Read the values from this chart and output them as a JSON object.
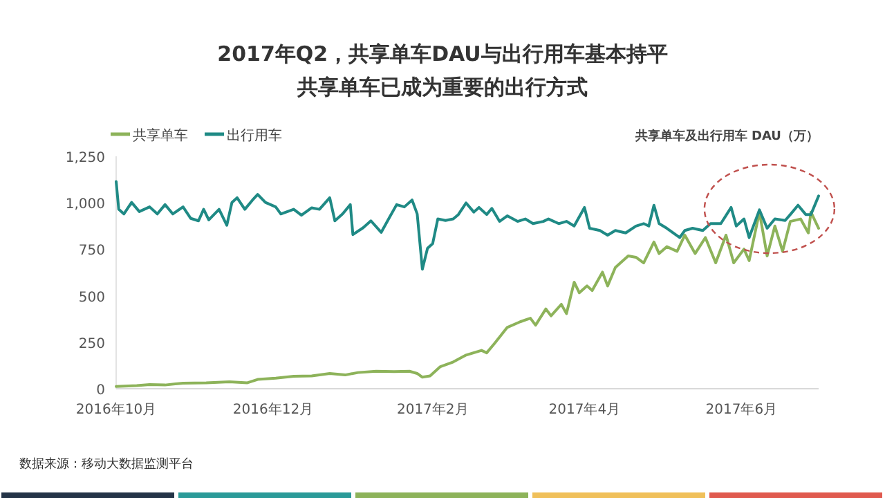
{
  "chart_data": {
    "type": "line",
    "title": "2017年Q2，共享单车DAU与出行用车基本持平",
    "subtitle": "共享单车已成为重要的出行方式",
    "ylabel": "共享单车及出行用车 DAU（万）",
    "annotations": [
      "数据来源：移动大数据监测平台"
    ],
    "legend": "top left",
    "xlim": [
      "2016-10-01",
      "2017-07-01"
    ],
    "xticks": [
      {
        "value": "2016-10",
        "label": "2016年10月"
      },
      {
        "value": "2016-12",
        "label": "2016年12月"
      },
      {
        "value": "2017-02",
        "label": "2017年2月"
      },
      {
        "value": "2017-04",
        "label": "2017年4月"
      },
      {
        "value": "2017-06",
        "label": "2017年6月"
      }
    ],
    "ylim": [
      0,
      1250
    ],
    "yticks": [
      0,
      250,
      500,
      750,
      {
        "value": 1000,
        "label": "1,000"
      },
      {
        "value": 1250,
        "label": "1,250"
      }
    ],
    "series": [
      {
        "name": "共享单车",
        "color": "#8db35a",
        "x": [
          "2016-10-01",
          "2016-10-09",
          "2016-10-14",
          "2016-10-20",
          "2016-10-27",
          "2016-11-05",
          "2016-11-14",
          "2016-11-21",
          "2016-11-25",
          "2016-12-02",
          "2016-12-09",
          "2016-12-16",
          "2016-12-23",
          "2016-12-29",
          "2017-01-03",
          "2017-01-10",
          "2017-01-17",
          "2017-01-23",
          "2017-01-26",
          "2017-01-28",
          "2017-01-31",
          "2017-02-04",
          "2017-02-09",
          "2017-02-14",
          "2017-02-20",
          "2017-02-22",
          "2017-02-25",
          "2017-03-02",
          "2017-03-07",
          "2017-03-11",
          "2017-03-13",
          "2017-03-17",
          "2017-03-19",
          "2017-03-23",
          "2017-03-25",
          "2017-03-28",
          "2017-03-30",
          "2017-04-02",
          "2017-04-04",
          "2017-04-08",
          "2017-04-10",
          "2017-04-13",
          "2017-04-15",
          "2017-04-18",
          "2017-04-21",
          "2017-04-24",
          "2017-04-28",
          "2017-04-30",
          "2017-05-03",
          "2017-05-07",
          "2017-05-10",
          "2017-05-14",
          "2017-05-18",
          "2017-05-22",
          "2017-05-26",
          "2017-05-29",
          "2017-06-02",
          "2017-06-04",
          "2017-06-08",
          "2017-06-11",
          "2017-06-14",
          "2017-06-17",
          "2017-06-20",
          "2017-06-24",
          "2017-06-27",
          "2017-06-28",
          "2017-07-01"
        ],
        "values": [
          12,
          17,
          22,
          20,
          30,
          32,
          37,
          32,
          50,
          57,
          67,
          69,
          82,
          74,
          87,
          94,
          92,
          94,
          82,
          62,
          69,
          119,
          144,
          181,
          206,
          193,
          243,
          330,
          360,
          379,
          342,
          429,
          392,
          454,
          404,
          573,
          516,
          553,
          528,
          627,
          553,
          652,
          677,
          714,
          707,
          677,
          789,
          727,
          764,
          739,
          826,
          727,
          813,
          677,
          826,
          677,
          751,
          689,
          950,
          714,
          875,
          739,
          900,
          913,
          838,
          950,
          863
        ]
      },
      {
        "name": "出行用车",
        "color": "#1f8a85",
        "x": [
          "2016-10-01",
          "2016-10-02",
          "2016-10-04",
          "2016-10-07",
          "2016-10-10",
          "2016-10-14",
          "2016-10-17",
          "2016-10-20",
          "2016-10-23",
          "2016-10-27",
          "2016-10-30",
          "2016-11-02",
          "2016-11-04",
          "2016-11-06",
          "2016-11-10",
          "2016-11-13",
          "2016-11-15",
          "2016-11-17",
          "2016-11-20",
          "2016-11-23",
          "2016-11-25",
          "2016-11-28",
          "2016-12-02",
          "2016-12-04",
          "2016-12-09",
          "2016-12-12",
          "2016-12-16",
          "2016-12-19",
          "2016-12-23",
          "2016-12-25",
          "2016-12-28",
          "2016-12-31",
          "2017-01-01",
          "2017-01-05",
          "2017-01-08",
          "2017-01-12",
          "2017-01-15",
          "2017-01-18",
          "2017-01-21",
          "2017-01-24",
          "2017-01-26",
          "2017-01-28",
          "2017-01-30",
          "2017-02-01",
          "2017-02-03",
          "2017-02-06",
          "2017-02-09",
          "2017-02-11",
          "2017-02-14",
          "2017-02-17",
          "2017-02-19",
          "2017-02-22",
          "2017-02-24",
          "2017-02-27",
          "2017-03-02",
          "2017-03-06",
          "2017-03-09",
          "2017-03-12",
          "2017-03-16",
          "2017-03-18",
          "2017-03-22",
          "2017-03-25",
          "2017-03-28",
          "2017-04-01",
          "2017-04-03",
          "2017-04-07",
          "2017-04-10",
          "2017-04-13",
          "2017-04-17",
          "2017-04-21",
          "2017-04-24",
          "2017-04-26",
          "2017-04-28",
          "2017-04-30",
          "2017-05-03",
          "2017-05-08",
          "2017-05-10",
          "2017-05-13",
          "2017-05-17",
          "2017-05-20",
          "2017-05-24",
          "2017-05-28",
          "2017-05-30",
          "2017-06-02",
          "2017-06-04",
          "2017-06-08",
          "2017-06-11",
          "2017-06-14",
          "2017-06-18",
          "2017-06-20",
          "2017-06-23",
          "2017-06-26",
          "2017-06-28",
          "2017-07-01"
        ],
        "values": [
          1114,
          965,
          940,
          1002,
          953,
          978,
          940,
          990,
          940,
          978,
          916,
          903,
          965,
          908,
          965,
          879,
          1002,
          1027,
          965,
          1015,
          1045,
          1002,
          978,
          940,
          965,
          933,
          973,
          965,
          1027,
          903,
          940,
          990,
          829,
          866,
          903,
          841,
          916,
          990,
          978,
          1015,
          940,
          643,
          755,
          780,
          913,
          905,
          913,
          937,
          999,
          950,
          975,
          937,
          970,
          900,
          930,
          900,
          913,
          888,
          900,
          913,
          888,
          900,
          875,
          975,
          863,
          851,
          826,
          851,
          838,
          875,
          888,
          875,
          987,
          888,
          863,
          813,
          851,
          863,
          851,
          888,
          888,
          975,
          875,
          913,
          813,
          962,
          863,
          913,
          905,
          937,
          987,
          937,
          937,
          1037
        ]
      }
    ]
  }
}
